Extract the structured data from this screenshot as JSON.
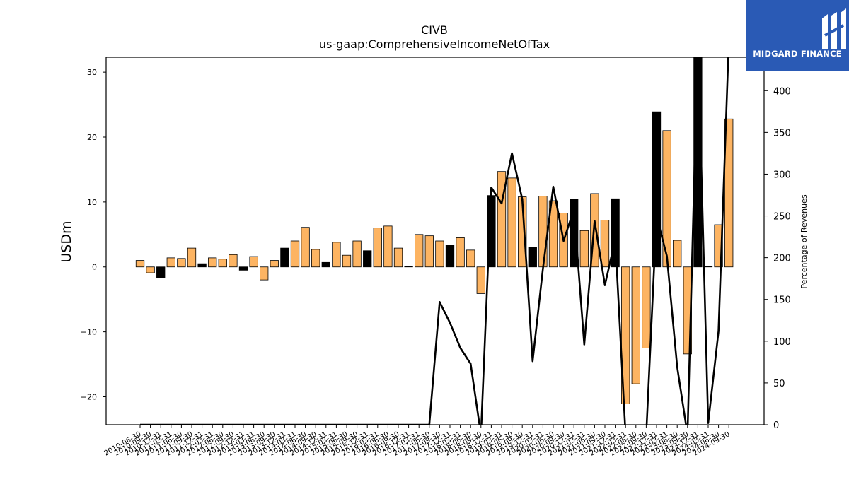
{
  "brand": {
    "name": "MIDGARD FINANCE",
    "bg_color": "#2a5ab5"
  },
  "chart_data": {
    "type": "bar",
    "title": "CIVB",
    "subtitle": "us-gaap:ComprehensiveIncomeNetOfTax",
    "ylabel": "USDm",
    "y2label": "Percentage of Revenues",
    "ylim": [
      -24.3,
      32.3
    ],
    "y2lim": [
      0,
      440
    ],
    "yticks": [
      -20,
      -10,
      0,
      10,
      20,
      30
    ],
    "y2ticks": [
      0,
      50,
      100,
      150,
      200,
      250,
      300,
      350,
      400
    ],
    "grid": false,
    "colors": {
      "positive_bar": "#fdb462",
      "black_bar": "#000000",
      "line": "#000000"
    },
    "categories": [
      "2010-06-30",
      "2010-09-30",
      "2010-12-31",
      "2011-03-31",
      "2011-06-30",
      "2011-09-30",
      "2011-12-31",
      "2012-03-31",
      "2012-06-30",
      "2012-09-30",
      "2012-12-31",
      "2013-03-31",
      "2013-06-30",
      "2013-09-30",
      "2013-12-31",
      "2014-03-31",
      "2014-06-30",
      "2014-09-30",
      "2014-12-31",
      "2015-03-31",
      "2015-06-30",
      "2015-09-30",
      "2015-12-31",
      "2016-03-31",
      "2016-06-30",
      "2016-09-30",
      "2016-12-31",
      "2017-03-31",
      "2017-06-30",
      "2017-09-30",
      "2017-12-31",
      "2018-03-31",
      "2018-06-30",
      "2018-09-30",
      "2018-12-31",
      "2019-03-31",
      "2019-06-30",
      "2019-09-30",
      "2019-12-31",
      "2020-03-31",
      "2020-06-30",
      "2020-09-30",
      "2020-12-31",
      "2021-03-31",
      "2021-06-30",
      "2021-09-30",
      "2021-12-31",
      "2022-03-31",
      "2022-06-30",
      "2022-09-30",
      "2022-12-31",
      "2023-03-31",
      "2023-06-30",
      "2023-09-30",
      "2023-12-31",
      "2024-03-31",
      "2024-06-30",
      "2024-09-30"
    ],
    "tick_labels_shown": [
      "2010-06-30",
      "2010-09-30",
      "2010-12-31",
      "2011-03-31",
      "2011-06-30",
      "2011-09-30",
      "2011-12-31",
      "2012-03-31",
      "2012-06-30",
      "2012-09-30",
      "2012-12-31",
      "2013-03-31",
      "2013-06-30",
      "2013-09-30",
      "2013-12-31",
      "2014-03-31",
      "2014-06-30",
      "2014-09-30",
      "2014-12-31",
      "2015-03-31",
      "2015-06-30",
      "2015-09-30",
      "2015-12-31",
      "2016-03-31",
      "2016-06-30",
      "2016-09-30",
      "2016-12-31",
      "2017-03-31",
      "2017-06-30",
      "2017-09-30",
      "2017-12-31",
      "2018-03-31",
      "2018-06-30",
      "2018-09-30",
      "2018-12-31",
      "2019-03-31",
      "2019-06-30",
      "2019-09-30",
      "2019-12-31",
      "2020-03-31",
      "2020-06-30",
      "2020-09-30",
      "2020-12-31",
      "2021-03-31",
      "2021-06-30",
      "2021-09-30",
      "2021-12-31",
      "2022-03-31",
      "2022-06-30",
      "2022-09-30",
      "2022-12-31",
      "2023-03-31",
      "2023-06-30",
      "2023-09-30",
      "2023-12-31",
      "2024-03-31",
      "2024-06-30",
      "2024-09-30"
    ],
    "series": [
      {
        "type": "bar",
        "axis": "left",
        "values": [
          1.0,
          -0.9,
          -1.7,
          1.4,
          1.3,
          2.9,
          0.5,
          1.4,
          1.2,
          1.9,
          -0.5,
          1.6,
          -2.0,
          1.0,
          2.9,
          4.0,
          6.1,
          2.7,
          0.7,
          3.8,
          1.8,
          4.0,
          2.5,
          6.0,
          6.3,
          2.9,
          0.1,
          5.0,
          4.8,
          4.0,
          3.4,
          4.5,
          2.6,
          -4.1,
          11.0,
          14.7,
          13.7,
          10.8,
          3.0,
          10.9,
          10.2,
          8.3,
          10.4,
          5.6,
          11.3,
          7.2,
          10.5,
          -21.1,
          -18.0,
          -12.5,
          23.9,
          21.0,
          4.1,
          -13.4,
          33.0,
          0.1,
          6.5,
          22.8
        ],
        "black": [
          false,
          false,
          true,
          false,
          false,
          false,
          true,
          false,
          false,
          false,
          true,
          false,
          false,
          false,
          true,
          false,
          false,
          false,
          true,
          false,
          false,
          false,
          true,
          false,
          false,
          false,
          true,
          false,
          false,
          false,
          true,
          false,
          false,
          false,
          true,
          false,
          false,
          false,
          true,
          false,
          false,
          false,
          true,
          false,
          false,
          false,
          true,
          false,
          false,
          false,
          true,
          false,
          false,
          false,
          true,
          true,
          false,
          false
        ]
      },
      {
        "type": "line",
        "axis": "right",
        "values": [
          0,
          0,
          0,
          0,
          0,
          0,
          0,
          0,
          0,
          0,
          0,
          0,
          0,
          0,
          0,
          0,
          0,
          0,
          0,
          0,
          0,
          0,
          0,
          0,
          0,
          0,
          0,
          0,
          0,
          147,
          122,
          92,
          73,
          -12,
          284,
          265,
          325,
          270,
          76,
          187,
          285,
          220,
          258,
          96,
          244,
          167,
          222,
          -12,
          -12,
          -12,
          250,
          202,
          69,
          -12,
          460,
          2,
          112,
          460
        ]
      }
    ]
  }
}
